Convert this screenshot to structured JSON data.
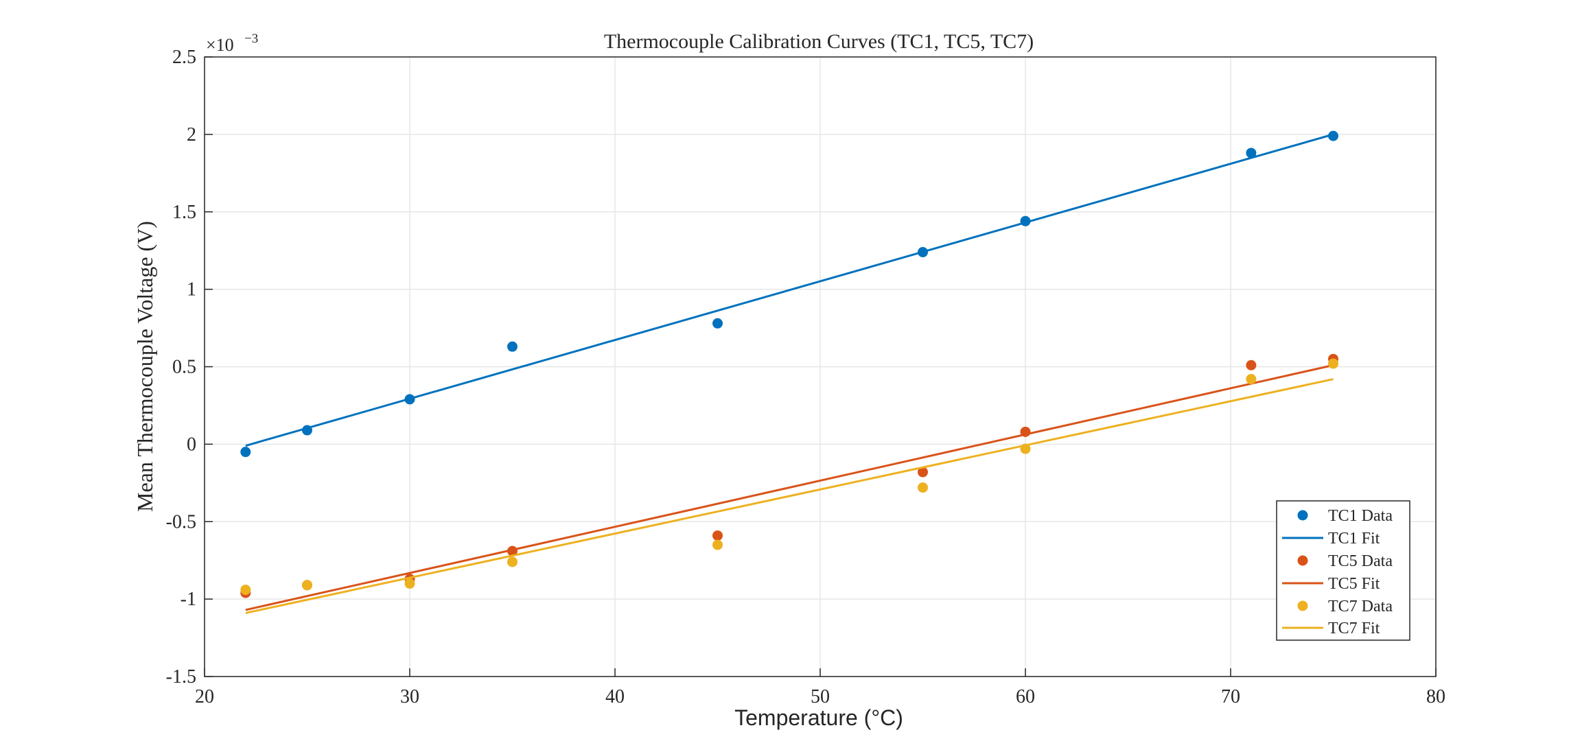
{
  "chart_data": {
    "type": "scatter",
    "title": "Thermocouple Calibration Curves (TC1, TC5, TC7)",
    "xlabel": "Temperature (°C)",
    "ylabel": "Mean Thermocouple Voltage (V)",
    "y_exponent_label": "×10",
    "y_exponent_power": "−3",
    "xlim": [
      20,
      80
    ],
    "ylim": [
      -1.5,
      2.5
    ],
    "x_ticks": [
      20,
      30,
      40,
      50,
      60,
      70,
      80
    ],
    "y_ticks": [
      -1.5,
      -1,
      -0.5,
      0,
      0.5,
      1,
      1.5,
      2,
      2.5
    ],
    "x_tick_labels": [
      "20",
      "30",
      "40",
      "50",
      "60",
      "70",
      "80"
    ],
    "y_tick_labels": [
      "-1.5",
      "-1",
      "-0.5",
      "0",
      "0.5",
      "1",
      "1.5",
      "2",
      "2.5"
    ],
    "grid": true,
    "legend_position": "bottom-right",
    "series": [
      {
        "name": "TC1 Data",
        "kind": "points",
        "color": "#0072BD",
        "x": [
          22,
          25,
          30,
          35,
          45,
          55,
          60,
          71,
          75
        ],
        "y": [
          -0.05,
          0.09,
          0.29,
          0.63,
          0.78,
          1.24,
          1.44,
          1.88,
          1.99
        ]
      },
      {
        "name": "TC1 Fit",
        "kind": "line",
        "color": "#0072BD",
        "x": [
          22,
          75
        ],
        "y": [
          -0.01,
          2.0
        ]
      },
      {
        "name": "TC5 Data",
        "kind": "points",
        "color": "#D95319",
        "x": [
          22,
          25,
          30,
          35,
          45,
          55,
          60,
          71,
          75
        ],
        "y": [
          -0.96,
          -0.91,
          -0.87,
          -0.69,
          -0.59,
          -0.18,
          0.08,
          0.51,
          0.55
        ]
      },
      {
        "name": "TC5 Fit",
        "kind": "line",
        "color": "#D95319",
        "x": [
          22,
          75
        ],
        "y": [
          -1.07,
          0.51
        ]
      },
      {
        "name": "TC7 Data",
        "kind": "points",
        "color": "#EDB120",
        "x": [
          22,
          25,
          30,
          35,
          45,
          55,
          60,
          71,
          75
        ],
        "y": [
          -0.94,
          -0.91,
          -0.9,
          -0.76,
          -0.65,
          -0.28,
          -0.03,
          0.42,
          0.52
        ]
      },
      {
        "name": "TC7 Fit",
        "kind": "line",
        "color": "#EDB120",
        "x": [
          22,
          75
        ],
        "y": [
          -1.09,
          0.42
        ]
      }
    ]
  }
}
